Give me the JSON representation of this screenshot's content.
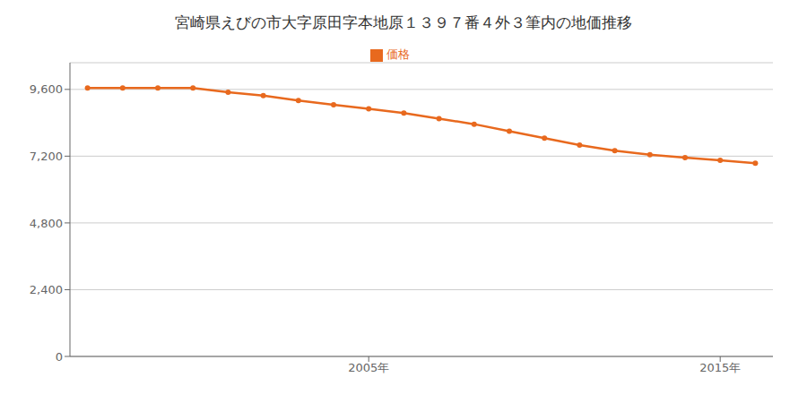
{
  "chart_data": {
    "type": "line",
    "title": "宮崎県えびの市大字原田字本地原１３９７番４外３筆内の地価推移",
    "x": [
      1997,
      1998,
      1999,
      2000,
      2001,
      2002,
      2003,
      2004,
      2005,
      2006,
      2007,
      2008,
      2009,
      2010,
      2011,
      2012,
      2013,
      2014,
      2015,
      2016
    ],
    "series": [
      {
        "name": "価格",
        "color": "#e8691e",
        "marker": "circle",
        "values": [
          9650,
          9650,
          9650,
          9650,
          9500,
          9380,
          9200,
          9050,
          8900,
          8750,
          8550,
          8350,
          8100,
          7850,
          7600,
          7400,
          7250,
          7150,
          7050,
          6950
        ]
      }
    ],
    "xlim": [
      1996.5,
      2016.5
    ],
    "xticks": [
      {
        "value": 2005,
        "label": "2005年"
      },
      {
        "value": 2015,
        "label": "2015年"
      }
    ],
    "ylim": [
      0,
      10560
    ],
    "yticks": [
      0,
      {
        "value": 2400,
        "label": "2,400"
      },
      {
        "value": 4800,
        "label": "4,800"
      },
      {
        "value": 7200,
        "label": "7,200"
      },
      {
        "value": 9600,
        "label": "9,600"
      }
    ],
    "grid": true,
    "legend": "top"
  }
}
